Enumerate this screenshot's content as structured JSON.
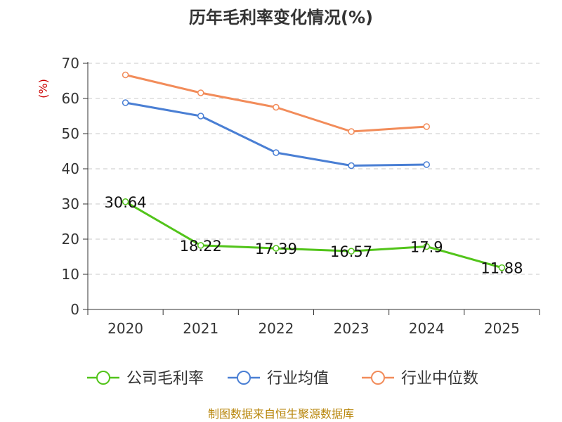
{
  "chart_data": {
    "type": "line",
    "title": "历年毛利率变化情况(%)",
    "ylabel": "(%)",
    "xlabel": "",
    "categories": [
      "2020",
      "2021",
      "2022",
      "2023",
      "2024",
      "2025"
    ],
    "ylim": [
      0,
      70
    ],
    "yticks": [
      0,
      10,
      20,
      30,
      40,
      50,
      60,
      70
    ],
    "grid": true,
    "legend_position": "bottom",
    "series": [
      {
        "name": "公司毛利率",
        "color": "#52c41a",
        "values": [
          30.64,
          18.22,
          17.39,
          16.57,
          17.9,
          11.88
        ],
        "labels": [
          "30.64",
          "18.22",
          "17.39",
          "16.57",
          "17.9",
          "11.88"
        ]
      },
      {
        "name": "行业均值",
        "color": "#4a7fd4",
        "values": [
          58.8,
          55.0,
          44.6,
          40.9,
          41.2,
          null
        ]
      },
      {
        "name": "行业中位数",
        "color": "#f28c5a",
        "values": [
          66.7,
          61.6,
          57.5,
          50.6,
          52.0,
          null
        ]
      }
    ]
  },
  "footer": {
    "source": "制图数据来自恒生聚源数据库"
  }
}
